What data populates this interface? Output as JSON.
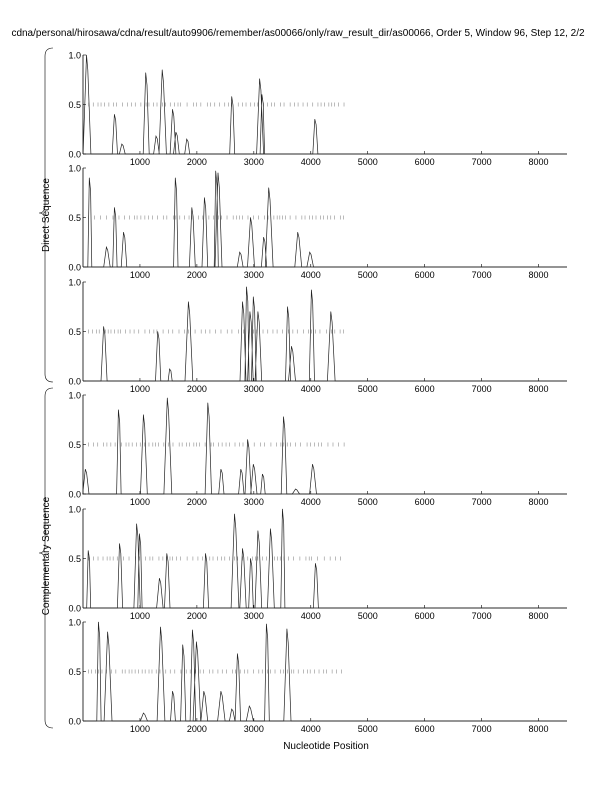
{
  "chart_data": {
    "type": "line",
    "title": "cdna/personal/hirosawa/cdna/result/auto9906/remember/as00066/only/raw_result_dir/as00066, Order 5, Window 96, Step 12, 2/2",
    "xlabel": "Nucleotide Position",
    "group_labels": [
      "Direct Sequence",
      "Complementary Sequence"
    ],
    "xlim": [
      0,
      8500
    ],
    "ylim": [
      0,
      1
    ],
    "xticks": [
      "1000",
      "2000",
      "3000",
      "4000",
      "5000",
      "6000",
      "7000",
      "8000"
    ],
    "yticks": [
      "0.0",
      "0.5",
      "1.0"
    ],
    "marker_row_range": [
      100,
      4600
    ],
    "panels": [
      {
        "group": 0,
        "peaks": [
          [
            70,
            1.0
          ],
          [
            560,
            0.4
          ],
          [
            690,
            0.1
          ],
          [
            1110,
            0.82
          ],
          [
            1290,
            0.18
          ],
          [
            1400,
            0.85
          ],
          [
            1580,
            0.45
          ],
          [
            1640,
            0.22
          ],
          [
            1830,
            0.15
          ],
          [
            2620,
            0.58
          ],
          [
            3110,
            0.76
          ],
          [
            3150,
            0.6
          ],
          [
            4080,
            0.35
          ]
        ]
      },
      {
        "group": 0,
        "peaks": [
          [
            120,
            0.9
          ],
          [
            420,
            0.2
          ],
          [
            560,
            0.6
          ],
          [
            720,
            0.35
          ],
          [
            1630,
            0.9
          ],
          [
            1920,
            0.6
          ],
          [
            2140,
            0.7
          ],
          [
            2340,
            0.97
          ],
          [
            2380,
            0.95
          ],
          [
            2760,
            0.15
          ],
          [
            2950,
            0.5
          ],
          [
            3180,
            0.3
          ],
          [
            3270,
            0.8
          ],
          [
            3780,
            0.35
          ],
          [
            3990,
            0.15
          ]
        ]
      },
      {
        "group": 0,
        "peaks": [
          [
            370,
            0.55
          ],
          [
            1320,
            0.5
          ],
          [
            1530,
            0.12
          ],
          [
            1860,
            0.8
          ],
          [
            2810,
            0.8
          ],
          [
            2880,
            0.95
          ],
          [
            2940,
            0.7
          ],
          [
            3000,
            0.85
          ],
          [
            3080,
            0.7
          ],
          [
            3600,
            0.75
          ],
          [
            3670,
            0.35
          ],
          [
            4020,
            0.92
          ],
          [
            4360,
            0.7
          ]
        ]
      },
      {
        "group": 1,
        "peaks": [
          [
            50,
            0.25
          ],
          [
            630,
            0.85
          ],
          [
            1070,
            0.8
          ],
          [
            1490,
            0.97
          ],
          [
            2200,
            0.92
          ],
          [
            2430,
            0.25
          ],
          [
            2780,
            0.25
          ],
          [
            2900,
            0.55
          ],
          [
            3000,
            0.3
          ],
          [
            3160,
            0.2
          ],
          [
            3530,
            0.78
          ],
          [
            3740,
            0.05
          ],
          [
            4040,
            0.3
          ]
        ]
      },
      {
        "group": 1,
        "peaks": [
          [
            100,
            0.58
          ],
          [
            650,
            0.65
          ],
          [
            950,
            0.85
          ],
          [
            1000,
            0.75
          ],
          [
            1350,
            0.3
          ],
          [
            1480,
            0.55
          ],
          [
            2160,
            0.55
          ],
          [
            2670,
            0.95
          ],
          [
            2810,
            0.6
          ],
          [
            2950,
            0.5
          ],
          [
            3080,
            0.78
          ],
          [
            3300,
            0.8
          ],
          [
            3510,
            1.0
          ],
          [
            4090,
            0.45
          ]
        ]
      },
      {
        "group": 1,
        "peaks": [
          [
            280,
            1.0
          ],
          [
            440,
            0.9
          ],
          [
            1070,
            0.08
          ],
          [
            1370,
            0.95
          ],
          [
            1580,
            0.3
          ],
          [
            1760,
            0.77
          ],
          [
            1930,
            0.92
          ],
          [
            2000,
            0.8
          ],
          [
            2130,
            0.3
          ],
          [
            2430,
            0.3
          ],
          [
            2620,
            0.12
          ],
          [
            2720,
            0.68
          ],
          [
            2930,
            0.15
          ],
          [
            3230,
            0.98
          ],
          [
            3590,
            0.93
          ]
        ]
      }
    ]
  }
}
